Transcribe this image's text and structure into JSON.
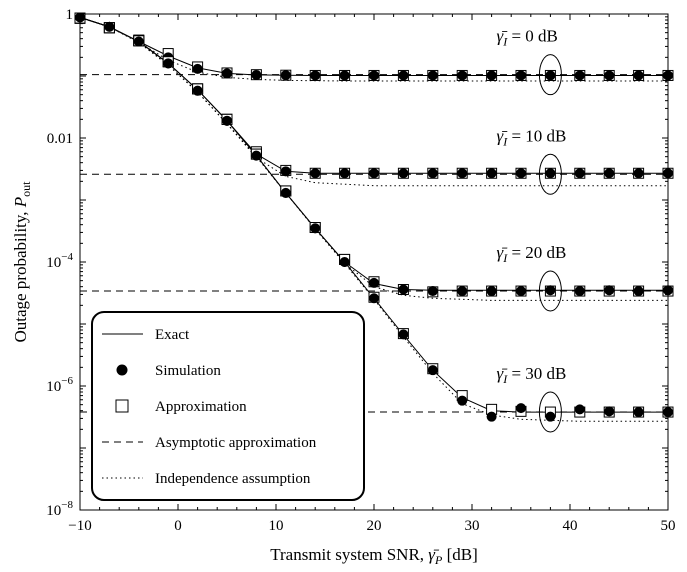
{
  "chart_data": {
    "type": "line",
    "title": "",
    "xlabel": "Transmit system SNR, γ̄P [dB]",
    "ylabel": "Outage probability, Pout",
    "xlim": [
      -10,
      50
    ],
    "ylim": [
      1e-08,
      1
    ],
    "yscale": "log",
    "x_ticks": [
      -10,
      0,
      10,
      20,
      30,
      40,
      50
    ],
    "x_tick_labels": [
      "−10",
      "0",
      "10",
      "20",
      "30",
      "40",
      "50"
    ],
    "y_ticks": [
      1,
      0.01,
      0.0001,
      1e-06,
      1e-08
    ],
    "y_tick_labels": [
      "1",
      "0.01",
      "10−4",
      "10−6",
      "10−8"
    ],
    "grid": false,
    "legend_position": "bottom-left",
    "legend": [
      {
        "label": "Exact",
        "style": "solid"
      },
      {
        "label": "Simulation",
        "style": "filled-circle"
      },
      {
        "label": "Approximation",
        "style": "open-square"
      },
      {
        "label": "Asymptotic approximation",
        "style": "dashed"
      },
      {
        "label": "Independence assumption",
        "style": "dotted"
      }
    ],
    "curve_labels": [
      {
        "text": "γ̄I = 0 dB",
        "gamma_I_dB": 0
      },
      {
        "text": "γ̄I = 10 dB",
        "gamma_I_dB": 10
      },
      {
        "text": "γ̄I = 20 dB",
        "gamma_I_dB": 20
      },
      {
        "text": "γ̄I = 30 dB",
        "gamma_I_dB": 30
      }
    ],
    "series": [
      {
        "gamma_I_dB": 0,
        "x": [
          -10,
          -7,
          -4,
          -1,
          2,
          5,
          8,
          11,
          14,
          17,
          20,
          23,
          26,
          29,
          32,
          35,
          38,
          41,
          44,
          47,
          50
        ],
        "exact": [
          0.88,
          0.62,
          0.36,
          0.21,
          0.135,
          0.11,
          0.104,
          0.103,
          0.102,
          0.102,
          0.102,
          0.102,
          0.102,
          0.102,
          0.102,
          0.102,
          0.102,
          0.102,
          0.102,
          0.102,
          0.102
        ],
        "simulation": [
          0.88,
          0.62,
          0.36,
          0.2,
          0.13,
          0.11,
          0.104,
          0.103,
          0.102,
          0.102,
          0.102,
          0.102,
          0.102,
          0.102,
          0.102,
          0.102,
          0.102,
          0.102,
          0.102,
          0.102,
          0.102
        ],
        "approximation": [
          0.85,
          0.6,
          0.38,
          0.23,
          0.14,
          0.112,
          0.105,
          0.103,
          0.102,
          0.102,
          0.102,
          0.102,
          0.102,
          0.102,
          0.102,
          0.102,
          0.102,
          0.102,
          0.102,
          0.102,
          0.102
        ],
        "asymptotic": 0.105,
        "independence": [
          0.88,
          0.62,
          0.35,
          0.18,
          0.115,
          0.095,
          0.088,
          0.085,
          0.084,
          0.083,
          0.083,
          0.083,
          0.083,
          0.083,
          0.083,
          0.083,
          0.083,
          0.083,
          0.083,
          0.083,
          0.083
        ]
      },
      {
        "gamma_I_dB": 10,
        "x": [
          -10,
          -7,
          -4,
          -1,
          2,
          5,
          8,
          11,
          14,
          17,
          20,
          23,
          26,
          29,
          32,
          35,
          38,
          41,
          44,
          47,
          50
        ],
        "exact": [
          0.88,
          0.62,
          0.36,
          0.16,
          0.06,
          0.019,
          0.0055,
          0.0029,
          0.0027,
          0.0027,
          0.0027,
          0.0027,
          0.0027,
          0.0027,
          0.0027,
          0.0027,
          0.0027,
          0.0027,
          0.0027,
          0.0027,
          0.0027
        ],
        "simulation": [
          0.88,
          0.62,
          0.36,
          0.16,
          0.058,
          0.019,
          0.0055,
          0.0029,
          0.0027,
          0.0027,
          0.0027,
          0.0027,
          0.0027,
          0.0027,
          0.0027,
          0.0027,
          0.0027,
          0.0027,
          0.0027,
          0.0027,
          0.0027
        ],
        "approximation": [
          0.86,
          0.6,
          0.37,
          0.17,
          0.062,
          0.02,
          0.006,
          0.003,
          0.0027,
          0.0027,
          0.0027,
          0.0027,
          0.0027,
          0.0027,
          0.0027,
          0.0027,
          0.0027,
          0.0027,
          0.0027,
          0.0027,
          0.0027
        ],
        "asymptotic": 0.0026,
        "independence": [
          0.88,
          0.62,
          0.35,
          0.15,
          0.055,
          0.017,
          0.0048,
          0.0024,
          0.0019,
          0.0018,
          0.0017,
          0.0017,
          0.0017,
          0.0017,
          0.0017,
          0.0017,
          0.0017,
          0.0017,
          0.0017,
          0.0017,
          0.0017
        ]
      },
      {
        "gamma_I_dB": 20,
        "x": [
          -10,
          -7,
          -4,
          -1,
          2,
          5,
          8,
          11,
          14,
          17,
          20,
          23,
          26,
          29,
          32,
          35,
          38,
          41,
          44,
          47,
          50
        ],
        "exact": [
          0.88,
          0.62,
          0.36,
          0.16,
          0.06,
          0.019,
          0.0052,
          0.0013,
          0.00035,
          0.0001,
          4.5e-05,
          3.6e-05,
          3.5e-05,
          3.5e-05,
          3.5e-05,
          3.5e-05,
          3.5e-05,
          3.5e-05,
          3.5e-05,
          3.5e-05,
          3.5e-05
        ],
        "simulation": [
          0.88,
          0.62,
          0.36,
          0.16,
          0.058,
          0.019,
          0.0052,
          0.0013,
          0.00035,
          0.0001,
          4.6e-05,
          3.6e-05,
          3.4e-05,
          3.4e-05,
          3.4e-05,
          3.4e-05,
          3.5e-05,
          3.4e-05,
          3.5e-05,
          3.4e-05,
          3.5e-05
        ],
        "approximation": [
          0.86,
          0.6,
          0.37,
          0.17,
          0.062,
          0.02,
          0.0055,
          0.0014,
          0.00036,
          0.00011,
          4.8e-05,
          3.6e-05,
          3.3e-05,
          3.4e-05,
          3.4e-05,
          3.4e-05,
          3.4e-05,
          3.4e-05,
          3.4e-05,
          3.4e-05,
          3.4e-05
        ],
        "asymptotic": 3.4e-05,
        "independence": [
          0.88,
          0.62,
          0.35,
          0.15,
          0.055,
          0.017,
          0.005,
          0.0013,
          0.00034,
          9.5e-05,
          4e-05,
          2.9e-05,
          2.6e-05,
          2.5e-05,
          2.4e-05,
          2.4e-05,
          2.4e-05,
          2.4e-05,
          2.4e-05,
          2.4e-05,
          2.4e-05
        ]
      },
      {
        "gamma_I_dB": 30,
        "x": [
          -10,
          -7,
          -4,
          -1,
          2,
          5,
          8,
          11,
          14,
          17,
          20,
          23,
          26,
          29,
          32,
          35,
          38,
          41,
          44,
          47,
          50
        ],
        "exact": [
          0.88,
          0.62,
          0.36,
          0.16,
          0.06,
          0.019,
          0.0052,
          0.0013,
          0.00035,
          0.0001,
          2.6e-05,
          6.7e-06,
          1.8e-06,
          6.5e-07,
          4e-07,
          3.8e-07,
          3.8e-07,
          3.8e-07,
          3.8e-07,
          3.8e-07,
          3.8e-07
        ],
        "simulation": [
          0.88,
          0.62,
          0.36,
          0.16,
          0.058,
          0.019,
          0.0052,
          0.0013,
          0.00035,
          0.0001,
          2.6e-05,
          6.8e-06,
          1.8e-06,
          5.8e-07,
          3.2e-07,
          4.4e-07,
          3.2e-07,
          4.2e-07,
          3.9e-07,
          3.8e-07,
          3.8e-07
        ],
        "approximation": [
          0.86,
          0.6,
          0.37,
          0.17,
          0.062,
          0.02,
          0.0055,
          0.0014,
          0.00036,
          0.00011,
          2.7e-05,
          7e-06,
          1.9e-06,
          7e-07,
          4.2e-07,
          3.9e-07,
          3.8e-07,
          3.8e-07,
          3.8e-07,
          3.8e-07,
          3.8e-07
        ],
        "asymptotic": 3.8e-07,
        "independence": [
          0.88,
          0.62,
          0.35,
          0.15,
          0.055,
          0.017,
          0.005,
          0.0013,
          0.00034,
          9.5e-05,
          2.5e-05,
          6.2e-06,
          1.6e-06,
          5.2e-07,
          3.4e-07,
          2.9e-07,
          2.8e-07,
          2.7e-07,
          2.7e-07,
          2.7e-07,
          2.7e-07
        ]
      }
    ]
  }
}
